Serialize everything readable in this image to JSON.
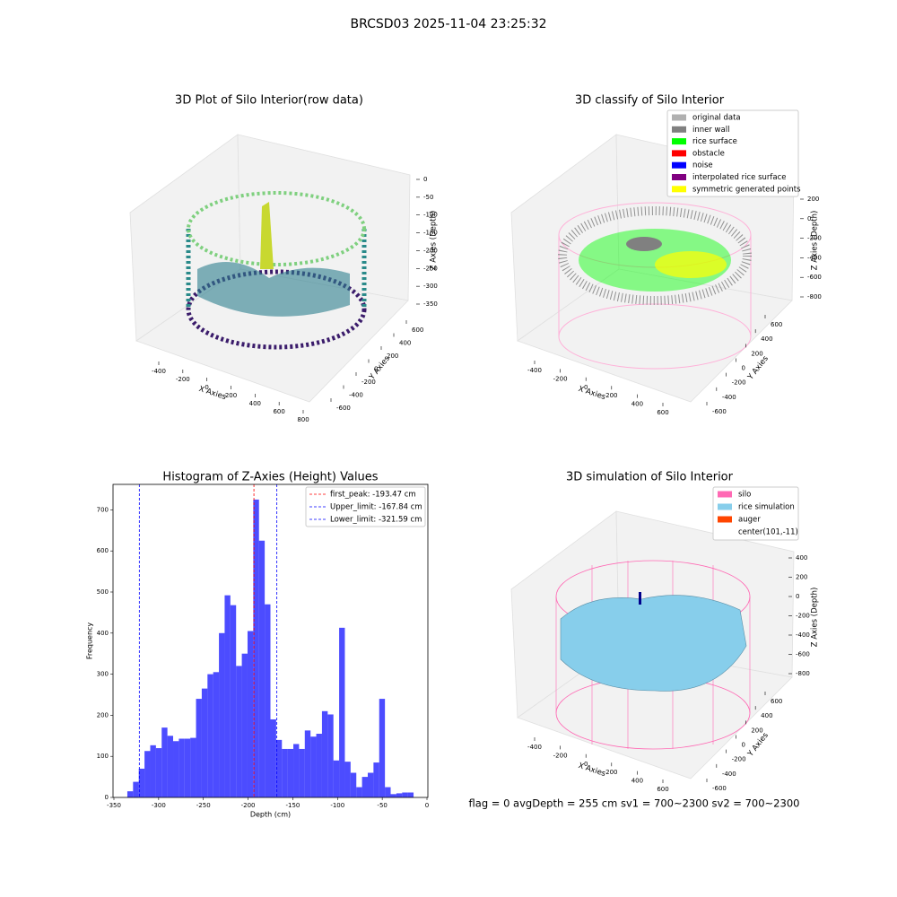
{
  "title": "BRCSD03 2025-11-04 23:25:32",
  "footer": "flag = 0     avgDepth = 255 cm  sv1 = 700~2300  sv2 = 700~2300",
  "chart_data": [
    {
      "type": "scatter3d",
      "title": "3D Plot of Silo Interior(row data)",
      "xlabel": "X Axies",
      "ylabel": "Y Axies",
      "zlabel": "Z Axies (Depth)",
      "xticks": [
        -400,
        -200,
        0,
        200,
        400,
        600,
        800
      ],
      "yticks": [
        -600,
        -400,
        -200,
        0,
        200,
        400,
        600
      ],
      "zticks": [
        0,
        -50,
        -100,
        -150,
        -200,
        -250,
        -300,
        -350
      ]
    },
    {
      "type": "scatter3d",
      "title": "3D classify of Silo Interior",
      "xlabel": "X Axies",
      "ylabel": "Y Axies",
      "zlabel": "Z Axies (Depth)",
      "xticks": [
        -400,
        -200,
        0,
        200,
        400,
        600
      ],
      "yticks": [
        -600,
        -400,
        -200,
        0,
        200,
        400,
        600
      ],
      "zticks": [
        200,
        0,
        -200,
        -400,
        -600,
        -800
      ],
      "legend": [
        {
          "name": "original data",
          "color": "#b0b0b0"
        },
        {
          "name": "inner wall",
          "color": "#808080"
        },
        {
          "name": "rice surface",
          "color": "#00ff00"
        },
        {
          "name": "obstacle",
          "color": "#ff0000"
        },
        {
          "name": "noise",
          "color": "#0000ff"
        },
        {
          "name": "interpolated rice surface",
          "color": "#800080"
        },
        {
          "name": "symmetric generated points",
          "color": "#ffff00"
        }
      ]
    },
    {
      "type": "histogram",
      "title": "Histogram of Z-Axies (Height) Values",
      "xlabel": "Depth (cm)",
      "ylabel": "Frequency",
      "color": "#0000ff",
      "bins": [
        -335.0,
        -328.6,
        -322.2,
        -315.8,
        -309.4,
        -303.0,
        -296.6,
        -290.2,
        -283.8,
        -277.4,
        -271.0,
        -264.6,
        -258.2,
        -251.8,
        -245.4,
        -239.0,
        -232.6,
        -226.2,
        -219.8,
        -213.4,
        -207.0,
        -200.6,
        -194.2,
        -187.8,
        -181.4,
        -175.0,
        -168.6,
        -162.2,
        -155.8,
        -149.4,
        -143.0,
        -136.6,
        -130.2,
        -123.8,
        -117.4,
        -111.0,
        -104.6,
        -98.2,
        -91.8,
        -85.4,
        -79.0,
        -72.6,
        -66.2,
        -59.8,
        -53.4,
        -47.0,
        -40.6,
        -34.2,
        -27.8,
        -21.4,
        -15.0
      ],
      "counts": [
        15,
        38,
        70,
        113,
        127,
        120,
        170,
        150,
        137,
        143,
        143,
        145,
        240,
        265,
        300,
        305,
        400,
        492,
        468,
        320,
        350,
        405,
        725,
        625,
        470,
        190,
        140,
        118,
        118,
        130,
        118,
        163,
        148,
        155,
        210,
        202,
        90,
        413,
        87,
        60,
        25,
        50,
        60,
        85,
        240,
        25,
        8,
        10,
        12,
        12
      ],
      "xlim": [
        -351,
        1
      ],
      "ylim": [
        0,
        762
      ],
      "xticks": [
        -350,
        -300,
        -250,
        -200,
        -150,
        -100,
        -50,
        0
      ],
      "yticks": [
        0,
        100,
        200,
        300,
        400,
        500,
        600,
        700
      ],
      "legend_loc": "upper right",
      "lines": [
        {
          "name": "first_peak: -193.47 cm",
          "value": -193.47,
          "color": "#ff0000"
        },
        {
          "name": "Upper_limit: -167.84 cm",
          "value": -167.84,
          "color": "#0000ff"
        },
        {
          "name": "Lower_limit: -321.59 cm",
          "value": -321.59,
          "color": "#0000ff"
        }
      ]
    },
    {
      "type": "surface3d",
      "title": "3D simulation of Silo Interior",
      "xlabel": "X Axies",
      "ylabel": "Y Axies",
      "zlabel": "Z Axies (Depth)",
      "xticks": [
        -400,
        -200,
        0,
        200,
        400,
        600
      ],
      "yticks": [
        -600,
        -400,
        -200,
        0,
        200,
        400,
        600
      ],
      "zticks": [
        400,
        200,
        0,
        -200,
        -400,
        -600,
        -800
      ],
      "legend": [
        {
          "name": "silo",
          "color": "#ff69b4"
        },
        {
          "name": "rice simulation",
          "color": "#87ceeb"
        },
        {
          "name": "auger",
          "color": "#ff4500"
        },
        {
          "name": "center(101,-11)",
          "color": null
        }
      ]
    }
  ]
}
